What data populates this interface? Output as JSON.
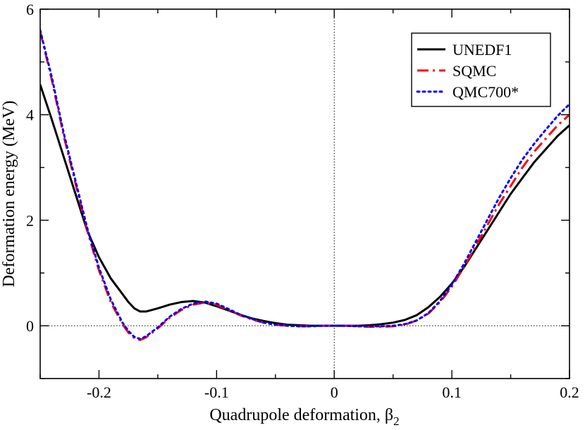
{
  "chart_data": {
    "type": "line",
    "title": "",
    "xlabel": "Quadrupole deformation, β",
    "xlabel_subscript": "2",
    "ylabel": "Deformation energy (MeV)",
    "xlim": [
      -0.25,
      0.2
    ],
    "ylim": [
      -1,
      6
    ],
    "x_major_ticks": [
      -0.2,
      -0.1,
      0,
      0.1,
      0.2
    ],
    "x_tick_labels": [
      "-0.2",
      "-0.1",
      "0",
      "0.1",
      "0.2"
    ],
    "x_minor_ticks": [
      -0.25,
      -0.15,
      -0.05,
      0.05,
      0.15
    ],
    "y_major_ticks": [
      0,
      2,
      4,
      6
    ],
    "y_tick_labels": [
      "0",
      "2",
      "4",
      "6"
    ],
    "y_minor_ticks": [
      -1,
      1,
      3,
      5
    ],
    "reference_lines": {
      "horizontal_y": 0,
      "vertical_x": 0,
      "style": "dotted"
    },
    "legend_position": "top-right",
    "series": [
      {
        "name": "UNEDF1",
        "color": "#000000",
        "dash": "solid",
        "x": [
          -0.25,
          -0.24,
          -0.23,
          -0.22,
          -0.21,
          -0.2,
          -0.19,
          -0.18,
          -0.175,
          -0.17,
          -0.165,
          -0.16,
          -0.15,
          -0.14,
          -0.13,
          -0.12,
          -0.11,
          -0.1,
          -0.09,
          -0.08,
          -0.07,
          -0.06,
          -0.05,
          -0.04,
          -0.03,
          -0.02,
          -0.01,
          0,
          0.01,
          0.02,
          0.03,
          0.04,
          0.05,
          0.06,
          0.07,
          0.08,
          0.09,
          0.1,
          0.11,
          0.12,
          0.13,
          0.14,
          0.15,
          0.16,
          0.17,
          0.18,
          0.19,
          0.2
        ],
        "y": [
          4.57,
          3.9,
          3.2,
          2.5,
          1.8,
          1.3,
          0.9,
          0.6,
          0.45,
          0.33,
          0.27,
          0.27,
          0.33,
          0.4,
          0.45,
          0.47,
          0.44,
          0.37,
          0.29,
          0.21,
          0.14,
          0.09,
          0.05,
          0.02,
          0.01,
          0.0,
          0.0,
          0.0,
          0.0,
          0.0,
          0.01,
          0.03,
          0.06,
          0.11,
          0.2,
          0.35,
          0.55,
          0.8,
          1.1,
          1.45,
          1.8,
          2.15,
          2.5,
          2.8,
          3.1,
          3.35,
          3.6,
          3.8
        ]
      },
      {
        "name": "SQMC",
        "color": "#ff0000",
        "dash": "long-dash-dot",
        "x": [
          -0.25,
          -0.24,
          -0.23,
          -0.22,
          -0.21,
          -0.2,
          -0.19,
          -0.18,
          -0.175,
          -0.17,
          -0.165,
          -0.16,
          -0.15,
          -0.14,
          -0.13,
          -0.12,
          -0.11,
          -0.1,
          -0.09,
          -0.08,
          -0.07,
          -0.06,
          -0.05,
          -0.04,
          -0.03,
          -0.02,
          -0.01,
          0,
          0.01,
          0.02,
          0.03,
          0.04,
          0.05,
          0.06,
          0.07,
          0.08,
          0.09,
          0.1,
          0.11,
          0.12,
          0.13,
          0.14,
          0.15,
          0.16,
          0.17,
          0.18,
          0.19,
          0.2
        ],
        "y": [
          5.58,
          4.65,
          3.6,
          2.7,
          1.8,
          1.05,
          0.45,
          0.03,
          -0.13,
          -0.23,
          -0.27,
          -0.22,
          -0.05,
          0.15,
          0.3,
          0.4,
          0.44,
          0.4,
          0.3,
          0.2,
          0.12,
          0.06,
          0.02,
          0.0,
          -0.01,
          -0.01,
          0.0,
          0.0,
          0.0,
          -0.01,
          -0.02,
          -0.02,
          -0.01,
          0.02,
          0.1,
          0.23,
          0.45,
          0.74,
          1.1,
          1.5,
          1.9,
          2.3,
          2.65,
          3.0,
          3.3,
          3.55,
          3.8,
          4.0
        ]
      },
      {
        "name": "QMC700*",
        "color": "#0000ff",
        "dash": "dotted",
        "x": [
          -0.25,
          -0.24,
          -0.23,
          -0.22,
          -0.21,
          -0.2,
          -0.19,
          -0.18,
          -0.175,
          -0.17,
          -0.165,
          -0.16,
          -0.15,
          -0.14,
          -0.13,
          -0.12,
          -0.11,
          -0.1,
          -0.09,
          -0.08,
          -0.07,
          -0.06,
          -0.05,
          -0.04,
          -0.03,
          -0.02,
          -0.01,
          0,
          0.01,
          0.02,
          0.03,
          0.04,
          0.05,
          0.06,
          0.07,
          0.08,
          0.09,
          0.1,
          0.11,
          0.12,
          0.13,
          0.14,
          0.15,
          0.16,
          0.17,
          0.18,
          0.19,
          0.2
        ],
        "y": [
          5.6,
          4.7,
          3.65,
          2.75,
          1.85,
          1.1,
          0.5,
          0.06,
          -0.1,
          -0.21,
          -0.25,
          -0.2,
          -0.03,
          0.17,
          0.32,
          0.42,
          0.46,
          0.42,
          0.32,
          0.21,
          0.13,
          0.06,
          0.02,
          0.0,
          -0.01,
          -0.01,
          0.0,
          0.0,
          0.0,
          -0.01,
          -0.01,
          -0.01,
          0.0,
          0.03,
          0.1,
          0.24,
          0.47,
          0.78,
          1.16,
          1.58,
          2.0,
          2.42,
          2.8,
          3.15,
          3.45,
          3.72,
          3.98,
          4.2
        ]
      }
    ]
  }
}
